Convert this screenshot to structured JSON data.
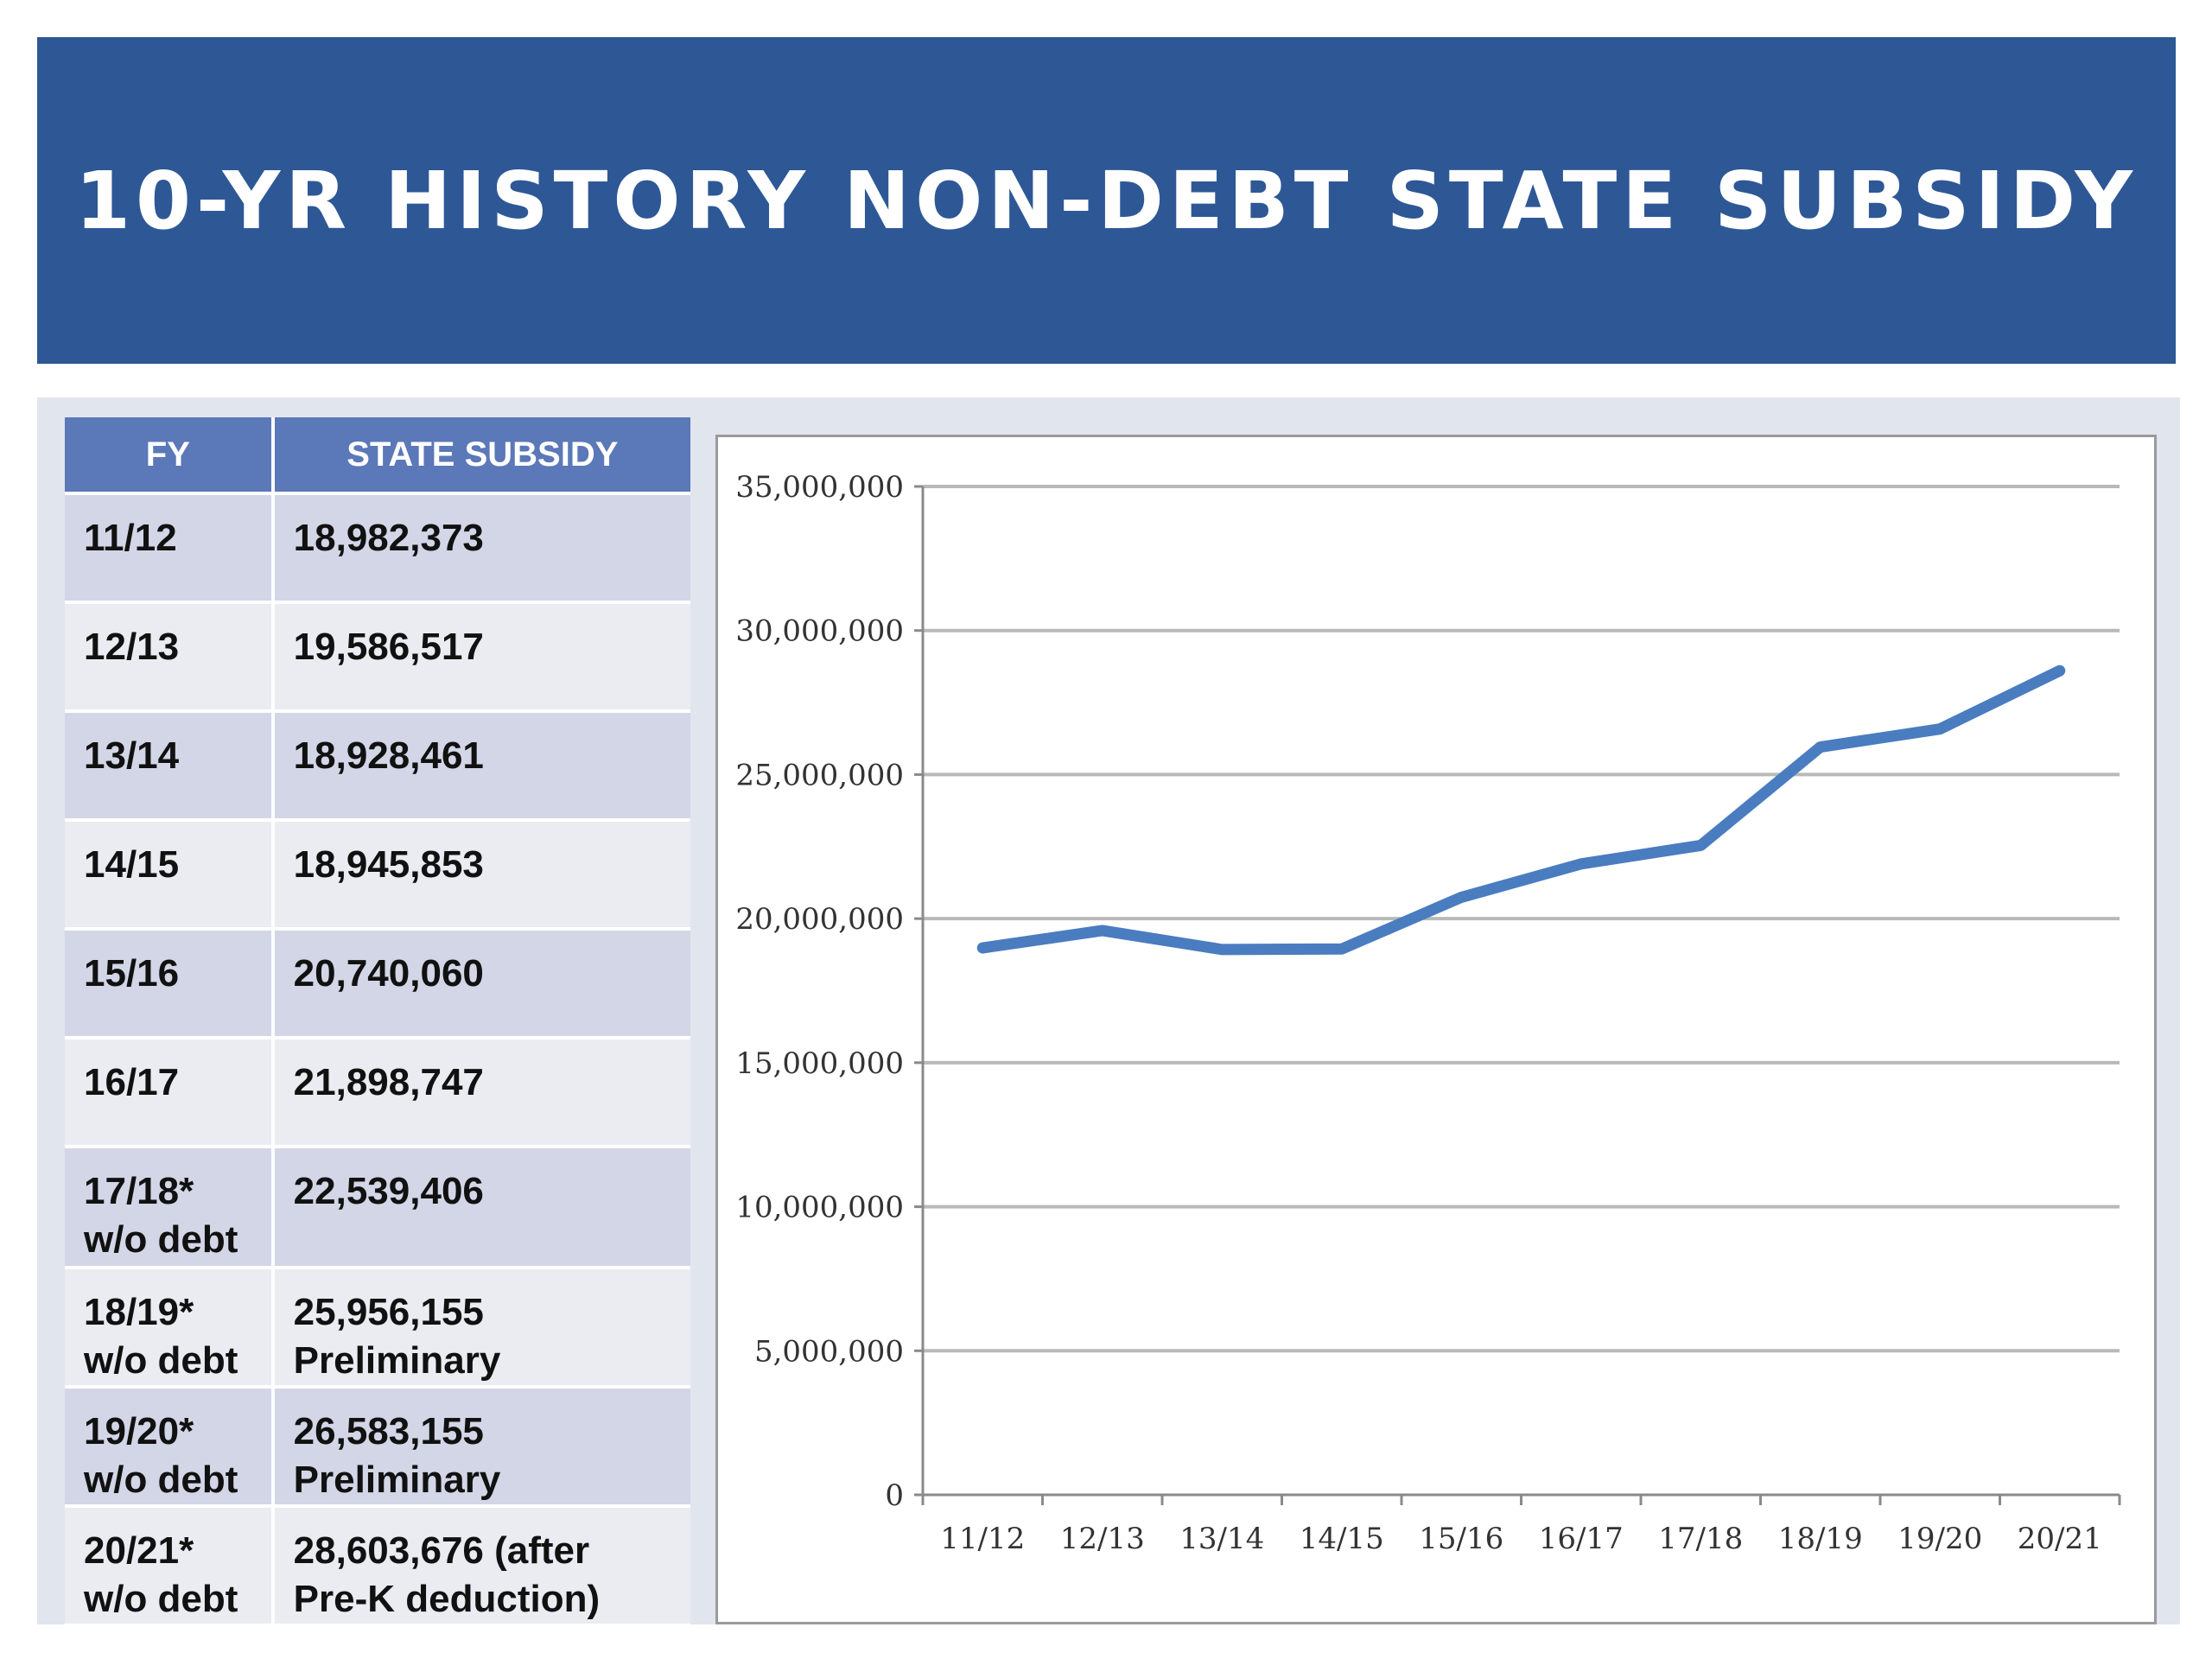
{
  "header": {
    "title": "10-YR HISTORY NON-DEBT STATE SUBSIDY",
    "background_color": "#2e5895"
  },
  "table": {
    "columns": [
      "FY",
      "STATE SUBSIDY"
    ],
    "rows": [
      {
        "fy": [
          "11/12"
        ],
        "subsidy": [
          "18,982,373"
        ]
      },
      {
        "fy": [
          "12/13"
        ],
        "subsidy": [
          "19,586,517"
        ]
      },
      {
        "fy": [
          "13/14"
        ],
        "subsidy": [
          "18,928,461"
        ]
      },
      {
        "fy": [
          "14/15"
        ],
        "subsidy": [
          "18,945,853"
        ]
      },
      {
        "fy": [
          "15/16"
        ],
        "subsidy": [
          "20,740,060"
        ]
      },
      {
        "fy": [
          "16/17"
        ],
        "subsidy": [
          "21,898,747"
        ]
      },
      {
        "fy": [
          "17/18*",
          "w/o debt"
        ],
        "subsidy": [
          "22,539,406"
        ]
      },
      {
        "fy": [
          "18/19*",
          "w/o debt"
        ],
        "subsidy": [
          "25,956,155",
          "Preliminary"
        ]
      },
      {
        "fy": [
          "19/20*",
          "w/o debt"
        ],
        "subsidy": [
          "26,583,155",
          "Preliminary"
        ]
      },
      {
        "fy": [
          "20/21*",
          "w/o debt"
        ],
        "subsidy": [
          "28,603,676 (after",
          "Pre-K deduction)"
        ]
      }
    ],
    "header_color": "#5b78b8",
    "odd_row_color": "#d2d6e6",
    "even_row_color": "#eaecf2"
  },
  "chart_data": {
    "type": "line",
    "title": "",
    "xlabel": "",
    "ylabel": "",
    "categories": [
      "11/12",
      "12/13",
      "13/14",
      "14/15",
      "15/16",
      "16/17",
      "17/18",
      "18/19",
      "19/20",
      "20/21"
    ],
    "series": [
      {
        "values": [
          18982373,
          19586517,
          18928461,
          18945853,
          20740060,
          21898747,
          22539406,
          25956155,
          26583155,
          28603676
        ],
        "color": "#4a7cc0"
      }
    ],
    "ylim": [
      0,
      35000000
    ],
    "yticks": [
      0,
      5000000,
      10000000,
      15000000,
      20000000,
      25000000,
      30000000,
      35000000
    ],
    "ytick_labels": [
      "0",
      "5,000,000",
      "10,000,000",
      "15,000,000",
      "20,000,000",
      "25,000,000",
      "30,000,000",
      "35,000,000"
    ],
    "grid": true,
    "legend": "none"
  }
}
